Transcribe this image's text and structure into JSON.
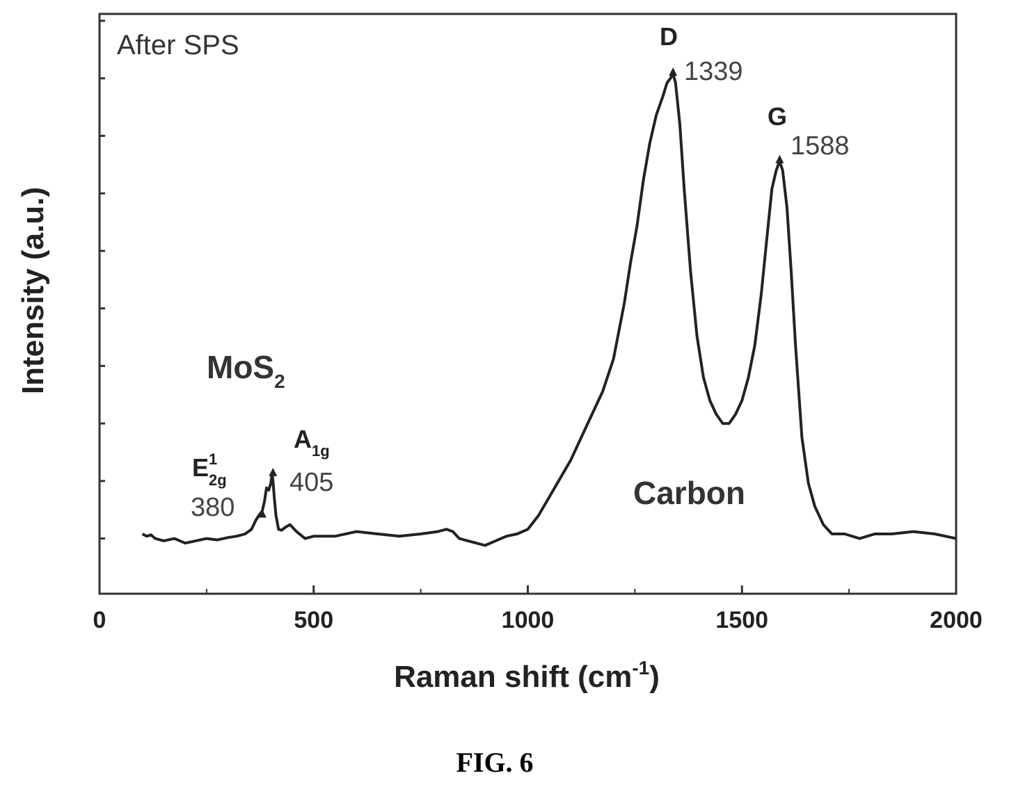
{
  "chart_data": {
    "type": "line",
    "xlabel": "Raman shift (cm",
    "xlabel_sup": "-1",
    "xlabel_close": ")",
    "ylabel": "Intensity (a.u.)",
    "xlim": [
      0,
      2000
    ],
    "ylim": [
      -0.12,
      1.14
    ],
    "x_ticks": [
      0,
      500,
      1000,
      1500,
      2000
    ],
    "x_minor_ticks": [
      250,
      750,
      1250,
      1750
    ],
    "y_ticks": [
      0,
      0.125,
      0.25,
      0.375,
      0.5,
      0.625,
      0.75,
      0.875,
      1.0,
      1.125
    ],
    "grid": false,
    "legend": "none",
    "annotation": "After SPS",
    "series": [
      {
        "x": [
          100,
          110,
          120,
          130,
          150,
          175,
          200,
          225,
          250,
          275,
          300,
          320,
          340,
          355,
          365,
          372,
          380,
          385,
          390,
          395,
          400,
          403,
          405,
          408,
          412,
          418,
          425,
          435,
          445,
          460,
          480,
          500,
          550,
          600,
          650,
          700,
          750,
          790,
          810,
          825,
          840,
          860,
          880,
          900,
          925,
          950,
          975,
          1000,
          1025,
          1050,
          1075,
          1100,
          1125,
          1150,
          1175,
          1200,
          1225,
          1240,
          1255,
          1270,
          1285,
          1300,
          1315,
          1325,
          1333,
          1339,
          1345,
          1355,
          1365,
          1380,
          1395,
          1410,
          1425,
          1440,
          1455,
          1470,
          1485,
          1500,
          1515,
          1530,
          1545,
          1560,
          1570,
          1580,
          1588,
          1595,
          1605,
          1615,
          1625,
          1640,
          1655,
          1670,
          1690,
          1710,
          1740,
          1775,
          1810,
          1850,
          1900,
          1950,
          2000
        ],
        "y": [
          0.01,
          0.005,
          0.008,
          0.0,
          -0.005,
          0.0,
          -0.01,
          -0.005,
          0.0,
          -0.003,
          0.002,
          0.005,
          0.01,
          0.02,
          0.04,
          0.05,
          0.06,
          0.08,
          0.11,
          0.105,
          0.12,
          0.14,
          0.125,
          0.09,
          0.05,
          0.02,
          0.018,
          0.025,
          0.03,
          0.015,
          0.0,
          0.005,
          0.005,
          0.015,
          0.01,
          0.005,
          0.01,
          0.015,
          0.02,
          0.015,
          0.0,
          -0.005,
          -0.01,
          -0.015,
          -0.005,
          0.005,
          0.01,
          0.02,
          0.05,
          0.09,
          0.13,
          0.17,
          0.22,
          0.27,
          0.32,
          0.39,
          0.51,
          0.6,
          0.68,
          0.78,
          0.86,
          0.92,
          0.96,
          0.99,
          1.0,
          1.01,
          0.99,
          0.9,
          0.76,
          0.58,
          0.44,
          0.35,
          0.3,
          0.27,
          0.25,
          0.25,
          0.27,
          0.3,
          0.35,
          0.42,
          0.53,
          0.67,
          0.76,
          0.8,
          0.82,
          0.8,
          0.72,
          0.58,
          0.42,
          0.22,
          0.12,
          0.07,
          0.03,
          0.01,
          0.01,
          0.0,
          0.01,
          0.01,
          0.015,
          0.01,
          0.0
        ]
      }
    ],
    "peaks": [
      {
        "name": "D",
        "value": "1339",
        "x": 1339,
        "y": 1.01
      },
      {
        "name": "G",
        "value": "1588",
        "x": 1588,
        "y": 0.82
      }
    ],
    "mos2_label": {
      "main": "MoS",
      "sub": "2"
    },
    "mos2_peaks": [
      {
        "name": "E",
        "sup": "1",
        "sub": "2g",
        "value": "380",
        "x": 380,
        "y": 0.05
      },
      {
        "name": "A",
        "sub": "1g",
        "value": "405",
        "x": 405,
        "y": 0.14
      }
    ],
    "carbon_label": "Carbon",
    "colors": {
      "line": "#222222",
      "frame": "#333333",
      "text": "#222222"
    }
  },
  "caption": "FIG. 6"
}
